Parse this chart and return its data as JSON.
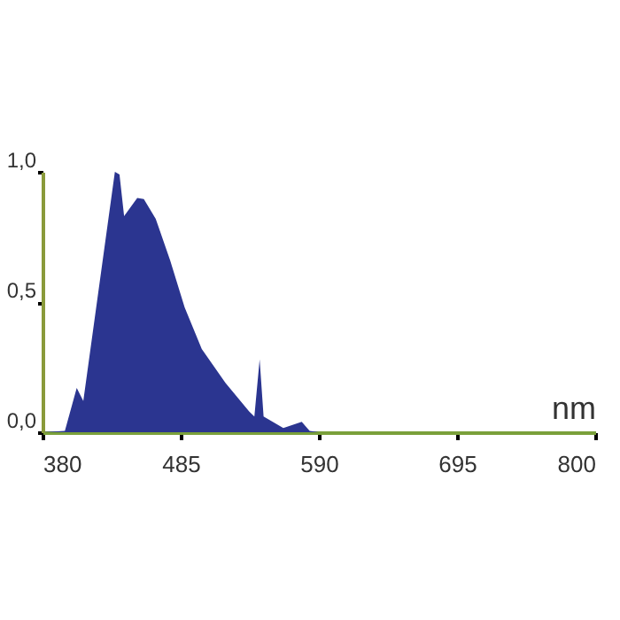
{
  "chart_data": {
    "type": "area",
    "xlabel": "nm",
    "xlim": [
      380,
      800
    ],
    "xticks": [
      380,
      485,
      590,
      695,
      800
    ],
    "ylim": [
      0,
      1.0
    ],
    "yticks": [
      {
        "value": 0,
        "label": "0,0"
      },
      {
        "value": 0.5,
        "label": "0,5"
      },
      {
        "value": 1.0,
        "label": "1,0"
      }
    ],
    "grid": false,
    "series": [
      {
        "color": "#2b3590",
        "x": [
          380,
          397,
          406,
          411,
          435,
          438.5,
          442,
          452,
          457,
          466,
          477,
          488,
          501,
          519,
          537,
          541,
          545,
          548,
          563,
          577,
          583,
          590,
          800
        ],
        "values": [
          0,
          0.005,
          0.17,
          0.12,
          1.0,
          0.99,
          0.83,
          0.9,
          0.895,
          0.82,
          0.66,
          0.48,
          0.32,
          0.19,
          0.08,
          0.06,
          0.28,
          0.06,
          0.016,
          0.04,
          0.005,
          0,
          0
        ]
      }
    ]
  }
}
